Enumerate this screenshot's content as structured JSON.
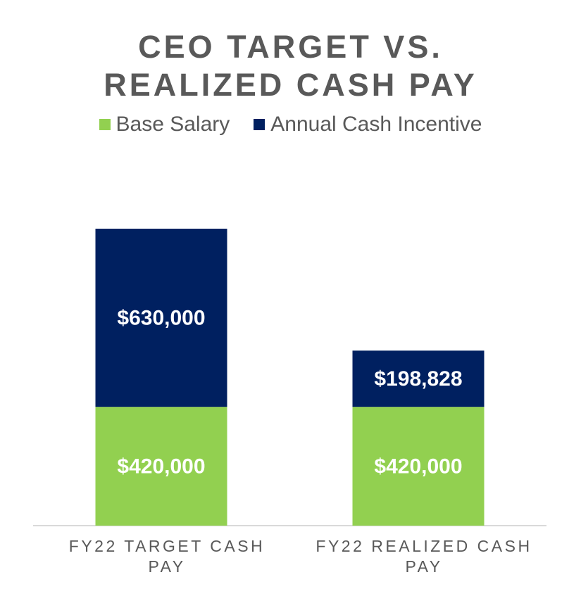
{
  "chart_data": {
    "type": "stacked-bar",
    "title": "CEO TARGET VS. REALIZED CASH PAY",
    "categories": [
      "FY22 TARGET CASH PAY",
      "FY22 REALIZED CASH PAY"
    ],
    "series": [
      {
        "name": "Base Salary",
        "color": "#92d050",
        "values": [
          420000,
          420000
        ],
        "value_labels": [
          "$420,000",
          "$420,000"
        ]
      },
      {
        "name": "Annual Cash Incentive",
        "color": "#002060",
        "values": [
          630000,
          198828
        ],
        "value_labels": [
          "$630,000",
          "$198,828"
        ]
      }
    ]
  }
}
